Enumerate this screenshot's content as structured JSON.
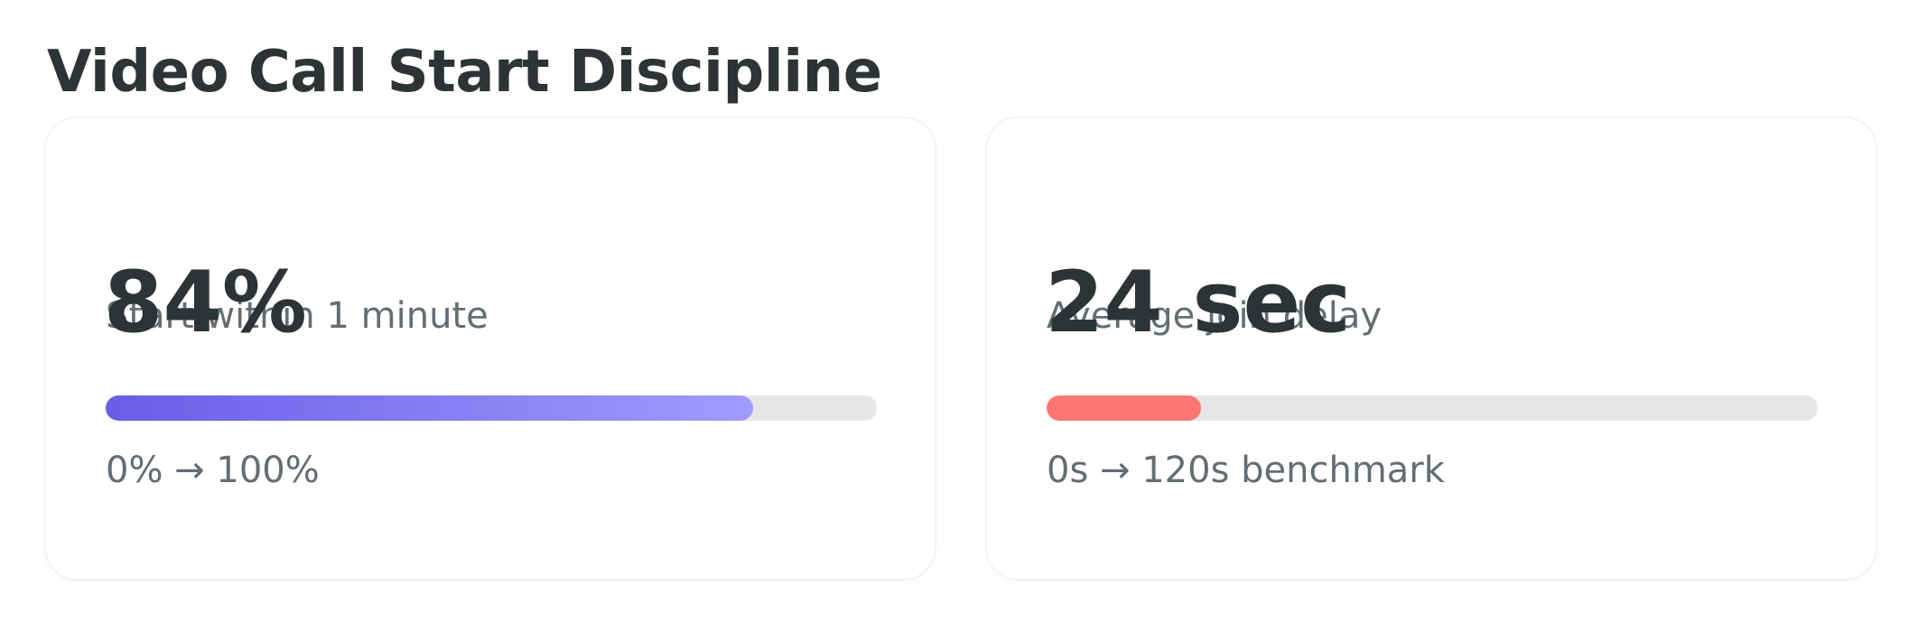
{
  "header": {
    "title": "Video Call Start Discipline"
  },
  "cards": [
    {
      "label": "Start within 1 minute",
      "value": 84,
      "value_label": "84%",
      "scale": [
        0,
        100
      ],
      "scale_label": "0% → 100%",
      "color": [
        "#6c5ce7",
        "#a29bfe"
      ]
    },
    {
      "label": "Average join delay",
      "value": 24,
      "value_label": "24 sec",
      "scale": [
        0,
        120
      ],
      "scale_label": "0s → 120s benchmark",
      "color": [
        "#ff7675",
        "#ff7675"
      ]
    }
  ]
}
